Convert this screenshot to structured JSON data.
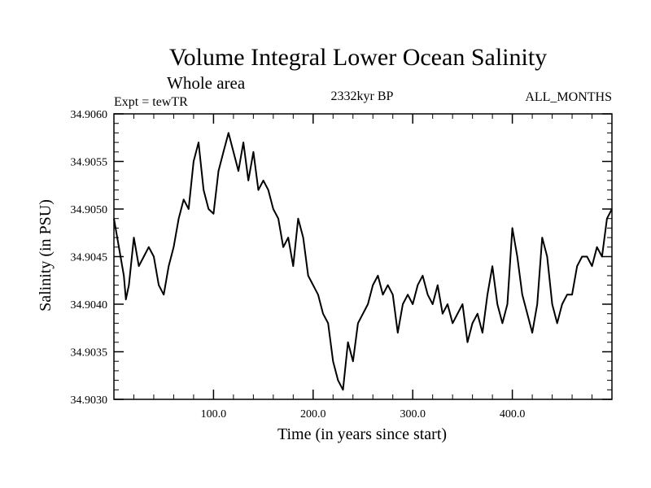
{
  "chart_data": {
    "type": "line",
    "title": "Volume Integral Lower Ocean Salinity",
    "subtitle": "Whole area",
    "left_label": "Expt = tewTR",
    "center_label": "2332kyr BP",
    "right_label": "ALL_MONTHS",
    "xlabel": "Time (in years since start)",
    "ylabel": "Salinity (in PSU)",
    "xlim": [
      0,
      500
    ],
    "ylim": [
      34.903,
      34.906
    ],
    "x_ticks": [
      100,
      200,
      300,
      400
    ],
    "x_tick_labels": [
      "100.0",
      "200.0",
      "300.0",
      "400.0"
    ],
    "y_ticks": [
      34.903,
      34.9035,
      34.904,
      34.9045,
      34.905,
      34.9055,
      34.906
    ],
    "y_tick_labels": [
      "34.9030",
      "34.9035",
      "34.9040",
      "34.9045",
      "34.9050",
      "34.9055",
      "34.9060"
    ],
    "grid": false,
    "line_color": "#000000",
    "series": [
      {
        "name": "salinity",
        "x": [
          0,
          5,
          10,
          12,
          15,
          20,
          25,
          30,
          35,
          40,
          45,
          50,
          55,
          60,
          65,
          70,
          75,
          80,
          85,
          88,
          90,
          95,
          100,
          105,
          110,
          115,
          120,
          125,
          130,
          135,
          140,
          145,
          150,
          155,
          160,
          165,
          170,
          175,
          180,
          185,
          190,
          195,
          200,
          205,
          210,
          215,
          220,
          225,
          230,
          235,
          240,
          245,
          250,
          255,
          260,
          265,
          270,
          275,
          280,
          285,
          290,
          295,
          300,
          305,
          310,
          315,
          320,
          325,
          330,
          335,
          340,
          345,
          350,
          355,
          360,
          365,
          370,
          375,
          380,
          385,
          390,
          395,
          400,
          405,
          410,
          415,
          420,
          425,
          430,
          435,
          440,
          445,
          450,
          455,
          460,
          465,
          470,
          475,
          480,
          485,
          490,
          495,
          500
        ],
        "y": [
          34.9049,
          34.9046,
          34.9043,
          34.90405,
          34.9042,
          34.9047,
          34.9044,
          34.9045,
          34.9046,
          34.9045,
          34.9042,
          34.9041,
          34.9044,
          34.9046,
          34.9049,
          34.9051,
          34.905,
          34.9055,
          34.9057,
          34.9054,
          34.9052,
          34.905,
          34.90495,
          34.9054,
          34.9056,
          34.9058,
          34.9056,
          34.9054,
          34.9057,
          34.9053,
          34.9056,
          34.9052,
          34.9053,
          34.9052,
          34.905,
          34.9049,
          34.9046,
          34.9047,
          34.9044,
          34.9049,
          34.9047,
          34.9043,
          34.9042,
          34.9041,
          34.9039,
          34.9038,
          34.9034,
          34.9032,
          34.9031,
          34.9036,
          34.9034,
          34.9038,
          34.9039,
          34.904,
          34.9042,
          34.9043,
          34.9041,
          34.9042,
          34.9041,
          34.9037,
          34.904,
          34.9041,
          34.904,
          34.9042,
          34.9043,
          34.9041,
          34.904,
          34.9042,
          34.9039,
          34.904,
          34.9038,
          34.9039,
          34.904,
          34.9036,
          34.9038,
          34.9039,
          34.9037,
          34.9041,
          34.9044,
          34.904,
          34.9038,
          34.904,
          34.9048,
          34.9045,
          34.9041,
          34.9039,
          34.9037,
          34.904,
          34.9047,
          34.9045,
          34.904,
          34.9038,
          34.904,
          34.9041,
          34.9041,
          34.9044,
          34.9045,
          34.9045,
          34.9044,
          34.9046,
          34.9045,
          34.9049,
          34.905
        ]
      }
    ]
  }
}
